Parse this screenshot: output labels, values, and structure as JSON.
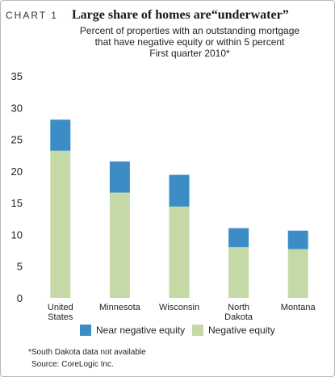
{
  "header": {
    "chart_number": "CHART 1",
    "title": "Large share of homes are“underwater”",
    "subtitle_lines": [
      "Percent of properties with an outstanding mortgage",
      "that have negative equity or within 5 percent",
      "First quarter 2010*"
    ]
  },
  "notes": {
    "footnote": "*South Dakota data not available",
    "source": "Source: CoreLogic Inc."
  },
  "chart_data": {
    "type": "bar",
    "stacked": true,
    "title": "Large share of homes are“underwater”",
    "xlabel": "",
    "ylabel": "",
    "ylim": [
      0,
      35
    ],
    "yticks": [
      0,
      5,
      10,
      15,
      20,
      25,
      30,
      35
    ],
    "grid": false,
    "legend_position": "bottom",
    "categories": [
      [
        "United",
        "States"
      ],
      [
        "Minnesota"
      ],
      [
        "Wisconsin"
      ],
      [
        "North",
        "Dakota"
      ],
      [
        "Montana"
      ]
    ],
    "series": [
      {
        "name": "Negative equity",
        "color": "#c5d9a6",
        "values": [
          23.2,
          16.6,
          14.4,
          8.0,
          7.7
        ]
      },
      {
        "name": "Near negative equity",
        "color": "#3c8dc5",
        "values": [
          4.9,
          4.9,
          5.0,
          3.0,
          2.9
        ]
      }
    ],
    "legend_order": [
      "Near negative equity",
      "Negative equity"
    ]
  }
}
